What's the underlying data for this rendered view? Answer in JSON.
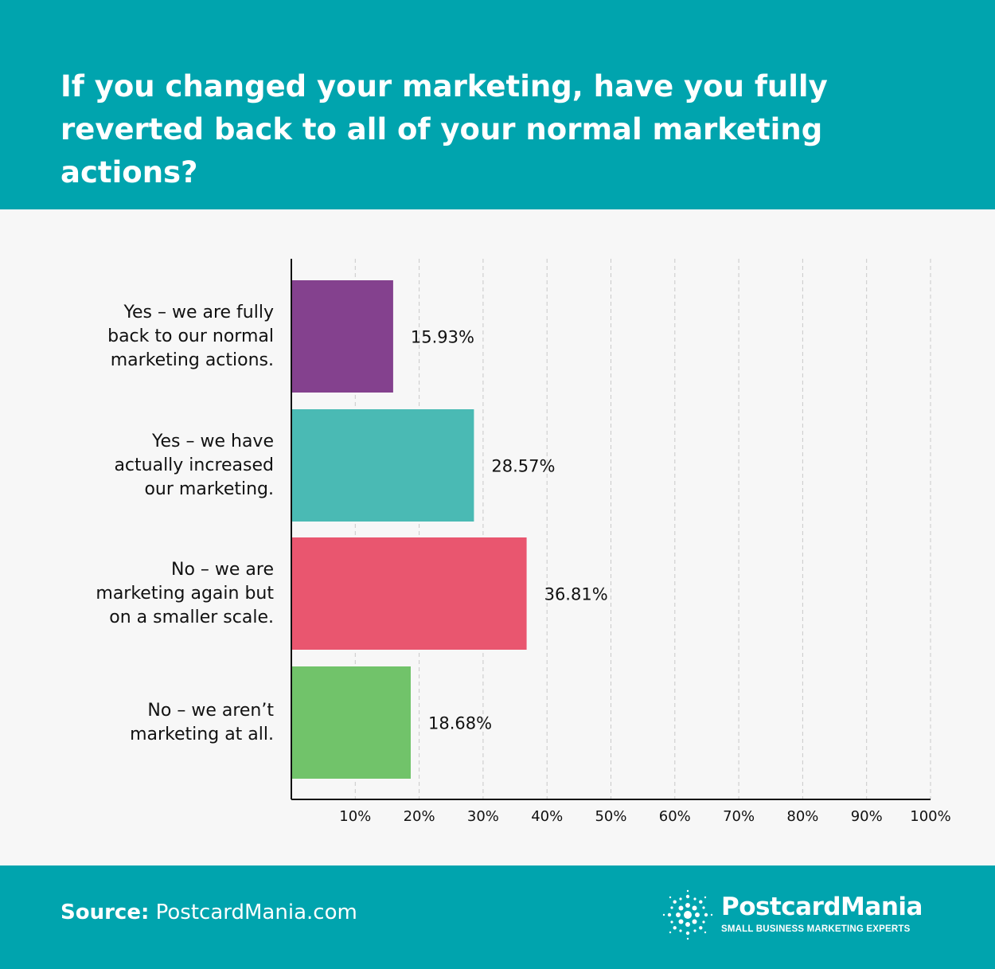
{
  "header": {
    "title": "If you changed your marketing, have you fully reverted back to all of your normal marketing actions?"
  },
  "chart_data": {
    "type": "bar",
    "orientation": "horizontal",
    "categories": [
      "Yes – we are fully back to our normal marketing actions.",
      "Yes – we have actually increased our marketing.",
      "No – we are marketing again but on a smaller scale.",
      "No – we aren’t marketing at all."
    ],
    "category_lines": [
      [
        "Yes – we are fully",
        "back to our normal",
        "marketing actions."
      ],
      [
        "Yes – we have",
        "actually increased",
        "our marketing."
      ],
      [
        "No – we are",
        "marketing again but",
        "on a smaller scale."
      ],
      [
        "No – we aren’t",
        "marketing at all."
      ]
    ],
    "values": [
      15.93,
      28.57,
      36.81,
      18.68
    ],
    "value_labels": [
      "15.93%",
      "28.57%",
      "36.81%",
      "18.68%"
    ],
    "colors": [
      "#84418e",
      "#4abab4",
      "#e9566f",
      "#71c36a"
    ],
    "xlim": [
      0,
      100
    ],
    "xticks": [
      "10%",
      "20%",
      "30%",
      "40%",
      "50%",
      "60%",
      "70%",
      "80%",
      "90%",
      "100%"
    ],
    "grid": true
  },
  "footer": {
    "source_label": "Source:",
    "source_value": "PostcardMania.com",
    "brand_name": "PostcardMania",
    "brand_tagline": "SMALL BUSINESS MARKETING EXPERTS",
    "logo_icon": "sunburst-dots-icon"
  },
  "colors": {
    "header_bg": "#00a4ae",
    "footer_bg": "#00a4ae",
    "chart_bg": "#f7f7f7"
  }
}
